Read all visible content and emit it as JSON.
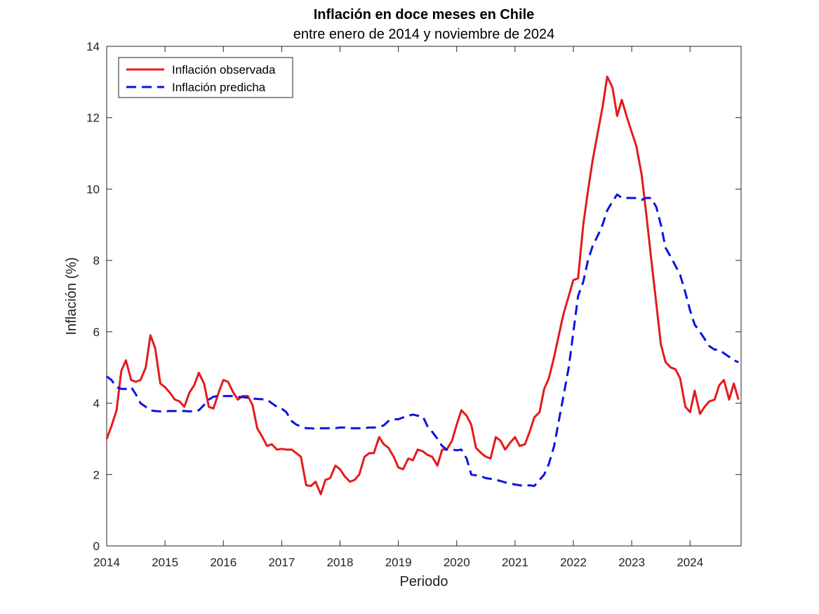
{
  "chart_data": {
    "type": "line",
    "title": "Inflación en doce meses en Chile",
    "subtitle": "entre enero de 2014 y noviembre de 2024",
    "xlabel": "Periodo",
    "ylabel": "Inflación (%)",
    "xlim": [
      2014.0,
      2024.875
    ],
    "ylim": [
      0,
      14
    ],
    "x_ticks": [
      "2014",
      "2015",
      "2016",
      "2017",
      "2018",
      "2019",
      "2020",
      "2021",
      "2022",
      "2023",
      "2024"
    ],
    "y_ticks": [
      "0",
      "2",
      "4",
      "6",
      "8",
      "10",
      "12",
      "14"
    ],
    "grid": false,
    "legend_position": "top-left",
    "series": [
      {
        "name": "Inflación observada",
        "color": "#e41a1c",
        "style": "solid",
        "x": [
          2014.0,
          2014.08,
          2014.17,
          2014.25,
          2014.33,
          2014.42,
          2014.5,
          2014.58,
          2014.67,
          2014.75,
          2014.83,
          2014.92,
          2015.0,
          2015.08,
          2015.17,
          2015.25,
          2015.33,
          2015.42,
          2015.5,
          2015.58,
          2015.67,
          2015.75,
          2015.83,
          2015.92,
          2016.0,
          2016.08,
          2016.17,
          2016.25,
          2016.33,
          2016.42,
          2016.5,
          2016.58,
          2016.67,
          2016.75,
          2016.83,
          2016.92,
          2017.0,
          2017.08,
          2017.17,
          2017.25,
          2017.33,
          2017.42,
          2017.5,
          2017.58,
          2017.67,
          2017.75,
          2017.83,
          2017.92,
          2018.0,
          2018.08,
          2018.17,
          2018.25,
          2018.33,
          2018.42,
          2018.5,
          2018.58,
          2018.67,
          2018.75,
          2018.83,
          2018.92,
          2019.0,
          2019.08,
          2019.17,
          2019.25,
          2019.33,
          2019.42,
          2019.5,
          2019.58,
          2019.67,
          2019.75,
          2019.83,
          2019.92,
          2020.0,
          2020.08,
          2020.17,
          2020.25,
          2020.33,
          2020.42,
          2020.5,
          2020.58,
          2020.67,
          2020.75,
          2020.83,
          2020.92,
          2021.0,
          2021.08,
          2021.17,
          2021.25,
          2021.33,
          2021.42,
          2021.5,
          2021.58,
          2021.67,
          2021.75,
          2021.83,
          2021.92,
          2022.0,
          2022.08,
          2022.17,
          2022.25,
          2022.33,
          2022.42,
          2022.5,
          2022.58,
          2022.67,
          2022.75,
          2022.83,
          2022.92,
          2023.0,
          2023.08,
          2023.17,
          2023.25,
          2023.33,
          2023.42,
          2023.5,
          2023.58,
          2023.67,
          2023.75,
          2023.83,
          2023.92,
          2024.0,
          2024.08,
          2024.17,
          2024.25,
          2024.33,
          2024.42,
          2024.5,
          2024.58,
          2024.67,
          2024.75,
          2024.83
        ],
        "y": [
          3.0,
          3.35,
          3.8,
          4.9,
          5.2,
          4.65,
          4.6,
          4.65,
          5.0,
          5.9,
          5.55,
          4.55,
          4.45,
          4.3,
          4.1,
          4.05,
          3.9,
          4.3,
          4.5,
          4.85,
          4.55,
          3.9,
          3.85,
          4.3,
          4.65,
          4.6,
          4.3,
          4.1,
          4.2,
          4.2,
          3.95,
          3.3,
          3.05,
          2.8,
          2.85,
          2.7,
          2.72,
          2.7,
          2.7,
          2.6,
          2.5,
          1.7,
          1.68,
          1.8,
          1.45,
          1.85,
          1.9,
          2.25,
          2.15,
          1.95,
          1.8,
          1.85,
          2.0,
          2.5,
          2.6,
          2.6,
          3.05,
          2.85,
          2.75,
          2.5,
          2.2,
          2.15,
          2.45,
          2.4,
          2.7,
          2.65,
          2.55,
          2.5,
          2.25,
          2.7,
          2.7,
          2.95,
          3.4,
          3.8,
          3.65,
          3.4,
          2.75,
          2.6,
          2.5,
          2.45,
          3.05,
          2.95,
          2.7,
          2.9,
          3.05,
          2.8,
          2.85,
          3.2,
          3.6,
          3.75,
          4.4,
          4.7,
          5.3,
          5.9,
          6.5,
          7.0,
          7.45,
          7.5,
          9.0,
          9.95,
          10.8,
          11.6,
          12.3,
          13.15,
          12.85,
          12.05,
          12.5,
          12.0,
          11.6,
          11.2,
          10.4,
          9.3,
          8.1,
          6.8,
          5.65,
          5.15,
          5.0,
          4.95,
          4.7,
          3.9,
          3.75,
          4.35,
          3.7,
          3.9,
          4.05,
          4.1,
          4.5,
          4.65,
          4.1,
          4.55,
          4.1
        ]
      },
      {
        "name": "Inflación predicha",
        "color": "#0a14e0",
        "style": "dashed",
        "x": [
          2014.0,
          2014.08,
          2014.17,
          2014.25,
          2014.33,
          2014.42,
          2014.5,
          2014.58,
          2014.67,
          2014.75,
          2014.83,
          2014.92,
          2015.0,
          2015.08,
          2015.17,
          2015.25,
          2015.33,
          2015.42,
          2015.5,
          2015.58,
          2015.67,
          2015.75,
          2015.83,
          2015.92,
          2016.0,
          2016.08,
          2016.17,
          2016.25,
          2016.33,
          2016.42,
          2016.5,
          2016.58,
          2016.67,
          2016.75,
          2016.83,
          2016.92,
          2017.0,
          2017.08,
          2017.17,
          2017.25,
          2017.33,
          2017.42,
          2017.5,
          2017.58,
          2017.67,
          2017.75,
          2017.83,
          2017.92,
          2018.0,
          2018.08,
          2018.17,
          2018.25,
          2018.33,
          2018.42,
          2018.5,
          2018.58,
          2018.67,
          2018.75,
          2018.83,
          2018.92,
          2019.0,
          2019.08,
          2019.17,
          2019.25,
          2019.33,
          2019.42,
          2019.5,
          2019.58,
          2019.67,
          2019.75,
          2019.83,
          2019.92,
          2020.0,
          2020.08,
          2020.17,
          2020.25,
          2020.33,
          2020.42,
          2020.5,
          2020.58,
          2020.67,
          2020.75,
          2020.83,
          2020.92,
          2021.0,
          2021.08,
          2021.17,
          2021.25,
          2021.33,
          2021.42,
          2021.5,
          2021.58,
          2021.67,
          2021.75,
          2021.83,
          2021.92,
          2022.0,
          2022.08,
          2022.17,
          2022.25,
          2022.33,
          2022.42,
          2022.5,
          2022.58,
          2022.67,
          2022.75,
          2022.83,
          2022.92,
          2023.0,
          2023.08,
          2023.17,
          2023.25,
          2023.33,
          2023.42,
          2023.5,
          2023.58,
          2023.67,
          2023.75,
          2023.83,
          2023.92,
          2024.0,
          2024.08,
          2024.17,
          2024.25,
          2024.33,
          2024.42,
          2024.5,
          2024.58,
          2024.67,
          2024.75,
          2024.83
        ],
        "y": [
          4.75,
          4.65,
          4.45,
          4.4,
          4.4,
          4.45,
          4.25,
          4.0,
          3.9,
          3.8,
          3.78,
          3.77,
          3.77,
          3.78,
          3.78,
          3.78,
          3.78,
          3.77,
          3.78,
          3.8,
          3.95,
          4.1,
          4.18,
          4.2,
          4.2,
          4.2,
          4.2,
          4.18,
          4.17,
          4.15,
          4.13,
          4.12,
          4.11,
          4.1,
          4.0,
          3.9,
          3.85,
          3.75,
          3.5,
          3.4,
          3.35,
          3.3,
          3.3,
          3.28,
          3.3,
          3.3,
          3.3,
          3.3,
          3.32,
          3.32,
          3.3,
          3.3,
          3.3,
          3.3,
          3.32,
          3.32,
          3.33,
          3.38,
          3.5,
          3.55,
          3.55,
          3.6,
          3.65,
          3.68,
          3.65,
          3.63,
          3.35,
          3.2,
          3.0,
          2.8,
          2.7,
          2.7,
          2.68,
          2.7,
          2.45,
          2.0,
          1.98,
          1.95,
          1.9,
          1.88,
          1.85,
          1.82,
          1.78,
          1.75,
          1.72,
          1.7,
          1.68,
          1.7,
          1.68,
          1.85,
          2.0,
          2.3,
          2.8,
          3.5,
          4.2,
          5.0,
          6.0,
          7.0,
          7.4,
          8.0,
          8.4,
          8.7,
          9.0,
          9.4,
          9.65,
          9.85,
          9.75,
          9.75,
          9.75,
          9.75,
          9.7,
          9.75,
          9.75,
          9.5,
          9.0,
          8.35,
          8.1,
          7.85,
          7.6,
          7.1,
          6.6,
          6.2,
          6.0,
          5.8,
          5.6,
          5.5,
          5.5,
          5.4,
          5.3,
          5.2,
          5.15
        ]
      }
    ]
  }
}
